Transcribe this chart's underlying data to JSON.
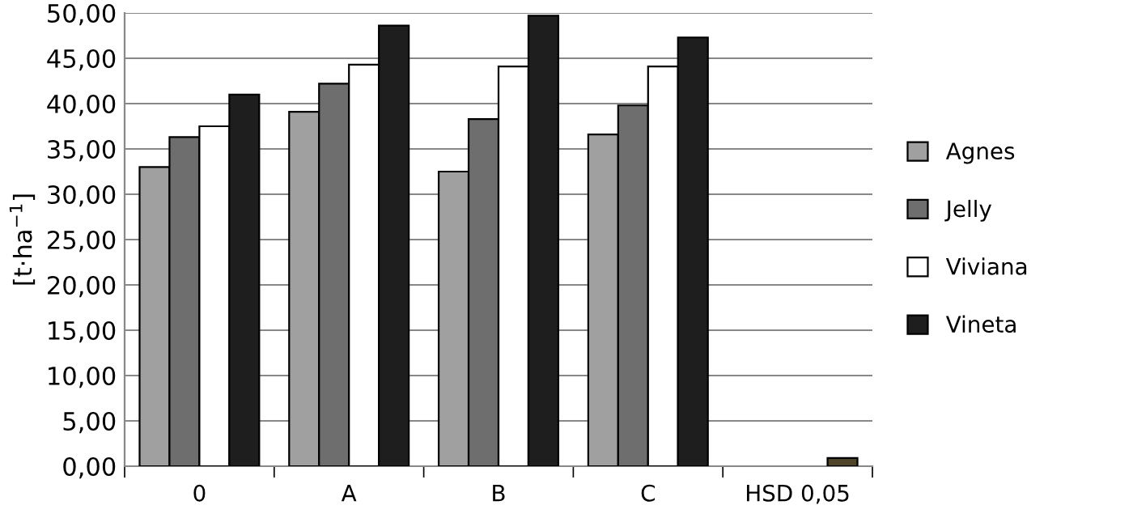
{
  "chart_data": {
    "type": "bar",
    "ylabel": "[t·ha$^{−1}$]",
    "categories": [
      "0",
      "A",
      "B",
      "C",
      "HSD 0,05"
    ],
    "series": [
      {
        "name": "Agnes",
        "color": "#a0a0a0",
        "values": [
          33.0,
          39.1,
          32.5,
          36.6,
          null
        ]
      },
      {
        "name": "Jelly",
        "color": "#6e6e6e",
        "values": [
          36.3,
          42.2,
          38.3,
          39.8,
          null
        ]
      },
      {
        "name": "Viviana",
        "color": "#ffffff",
        "values": [
          37.5,
          44.3,
          44.1,
          44.1,
          null
        ]
      },
      {
        "name": "Vineta",
        "color": "#1e1e1e",
        "colors": [
          "#1e1e1e",
          "#1e1e1e",
          "#1e1e1e",
          "#1e1e1e",
          "#4f4329"
        ],
        "values": [
          41.0,
          48.6,
          49.7,
          47.3,
          0.9
        ]
      }
    ],
    "ylim": [
      0,
      50
    ],
    "yticks": [
      {
        "value": 0,
        "label": "0,00"
      },
      {
        "value": 5,
        "label": "5,00"
      },
      {
        "value": 10,
        "label": "10,00"
      },
      {
        "value": 15,
        "label": "15,00"
      },
      {
        "value": 20,
        "label": "20,00"
      },
      {
        "value": 25,
        "label": "25,00"
      },
      {
        "value": 30,
        "label": "30,00"
      },
      {
        "value": 35,
        "label": "35,00"
      },
      {
        "value": 40,
        "label": "40,00"
      },
      {
        "value": 45,
        "label": "45,00"
      },
      {
        "value": 50,
        "label": "50,00"
      }
    ],
    "grid": "y",
    "legend": "right"
  }
}
